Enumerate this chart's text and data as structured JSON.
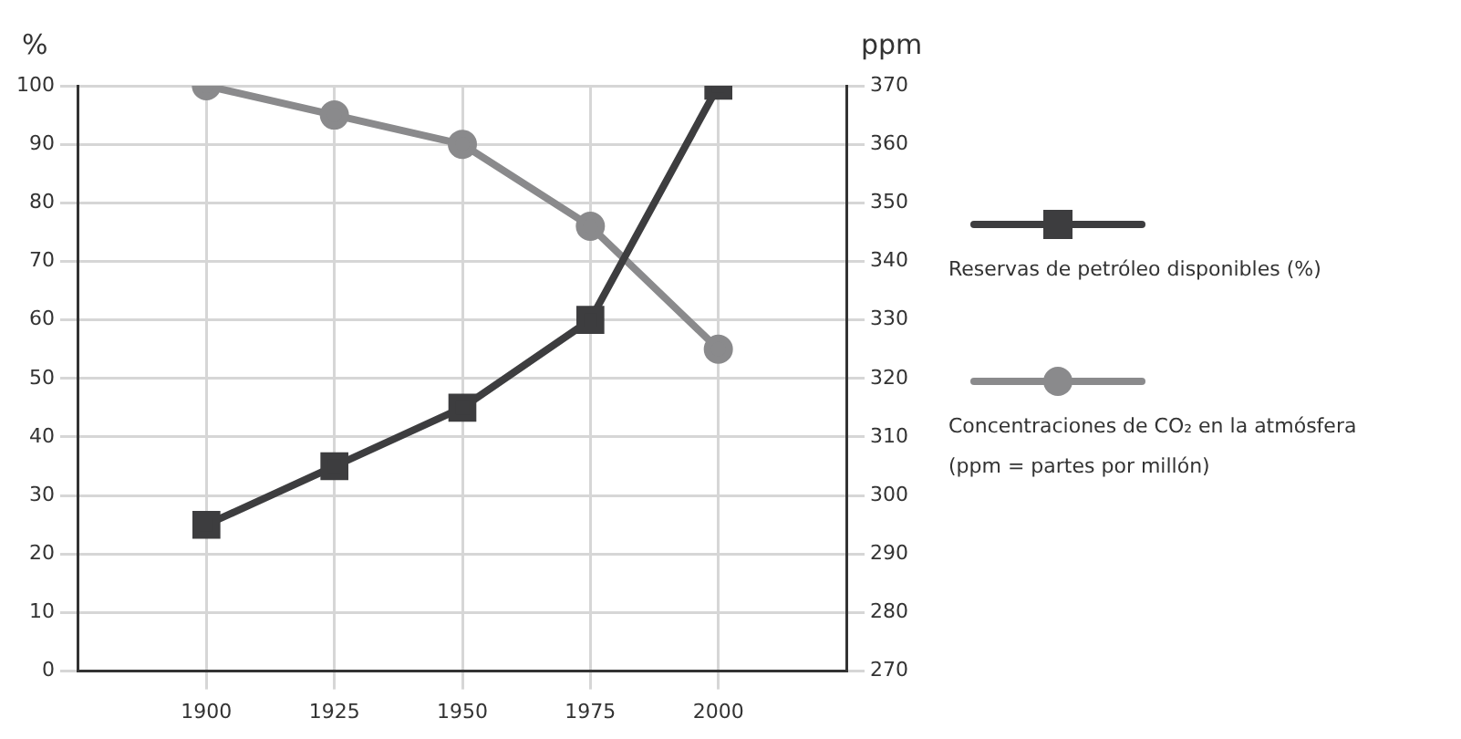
{
  "chart_data": {
    "type": "line",
    "x": [
      1900,
      1925,
      1950,
      1975,
      2000
    ],
    "xlim": [
      1875,
      2025
    ],
    "xticks": [
      1900,
      1925,
      1950,
      1975,
      2000
    ],
    "ylabel": "%",
    "y2label": "ppm",
    "ylim": [
      0,
      100
    ],
    "yticks": [
      0,
      10,
      20,
      30,
      40,
      50,
      60,
      70,
      80,
      90,
      100
    ],
    "y2lim": [
      270,
      370
    ],
    "y2ticks": [
      270,
      280,
      290,
      300,
      310,
      320,
      330,
      340,
      350,
      360,
      370
    ],
    "series": [
      {
        "name": "Reservas de petróleo disponibles (%)",
        "color": "#3d3d3f",
        "marker": "square",
        "values": [
          25,
          35,
          45,
          60,
          100
        ]
      },
      {
        "name": "Concentraciones de CO₂ en la atmósfera (ppm = partes por millón)",
        "color": "#8a8a8c",
        "marker": "circle",
        "axis": "y2",
        "values": [
          370,
          365,
          360,
          346,
          325
        ]
      }
    ],
    "grid": true,
    "legend": "right",
    "line_style": "solid"
  }
}
